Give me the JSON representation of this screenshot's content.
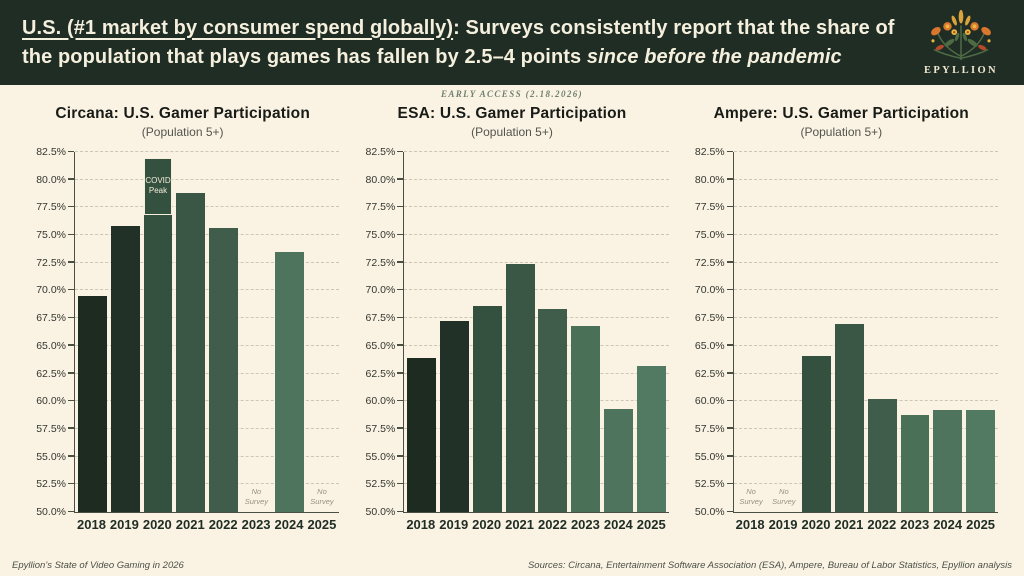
{
  "header": {
    "title_underlined": "U.S. (#1 market by consumer spend globally)",
    "title_rest": ": Surveys consistently report that the share of the population that plays games has fallen by 2.5–4 points ",
    "title_italic": "since before the pandemic",
    "brand": "EPYLLION"
  },
  "early_access": "EARLY ACCESS (2.18.2026)",
  "labels": {
    "no_survey": [
      "No",
      "Survey"
    ]
  },
  "styles": {
    "background": "#faf3e4",
    "header_bg": "#1f2d24",
    "header_text": "#f5efdd",
    "gridline": "#ccc6b3",
    "axis": "#4a4f44",
    "bar_colors": [
      "#1d2b21",
      "#223128",
      "#34503f",
      "#3a5644",
      "#405c4b",
      "#4b7058",
      "#4e745d",
      "#527a62"
    ],
    "covid_outline": "#f4eedb"
  },
  "chart_data": [
    {
      "type": "bar",
      "title": "Circana: U.S. Gamer Participation",
      "subtitle": "(Population 5+)",
      "categories": [
        "2018",
        "2019",
        "2020",
        "2021",
        "2022",
        "2023",
        "2024",
        "2025"
      ],
      "values": [
        69.5,
        75.8,
        82.0,
        78.8,
        75.6,
        null,
        73.5,
        null
      ],
      "no_survey_years": [
        "2023",
        "2025"
      ],
      "annotations": [
        {
          "year": "2020",
          "label": "COVID Peak",
          "segment_from": 76.8,
          "segment_to": 82.0
        }
      ],
      "ylim": [
        50.0,
        82.5
      ],
      "ytick_step": 2.5,
      "ytick_format": "percent_1dp",
      "grid": "dashed-horizontal"
    },
    {
      "type": "bar",
      "title": "ESA: U.S. Gamer Participation",
      "subtitle": "(Population 5+)",
      "categories": [
        "2018",
        "2019",
        "2020",
        "2021",
        "2022",
        "2023",
        "2024",
        "2025"
      ],
      "values": [
        63.9,
        67.2,
        68.6,
        72.4,
        68.3,
        66.8,
        59.3,
        63.2
      ],
      "no_survey_years": [],
      "annotations": [],
      "ylim": [
        50.0,
        82.5
      ],
      "ytick_step": 2.5,
      "ytick_format": "percent_1dp",
      "grid": "dashed-horizontal"
    },
    {
      "type": "bar",
      "title": "Ampere: U.S. Gamer Participation",
      "subtitle": "(Population 5+)",
      "categories": [
        "2018",
        "2019",
        "2020",
        "2021",
        "2022",
        "2023",
        "2024",
        "2025"
      ],
      "values": [
        null,
        null,
        64.1,
        67.0,
        60.2,
        58.8,
        59.2,
        59.2
      ],
      "no_survey_years": [
        "2018",
        "2019"
      ],
      "annotations": [],
      "ylim": [
        50.0,
        82.5
      ],
      "ytick_step": 2.5,
      "ytick_format": "percent_1dp",
      "grid": "dashed-horizontal"
    }
  ],
  "footer": {
    "left": "Epyllion’s State of Video Gaming in 2026",
    "right": "Sources: Circana, Entertainment Software Association (ESA), Ampere, Bureau of Labor Statistics, Epyllion analysis"
  }
}
